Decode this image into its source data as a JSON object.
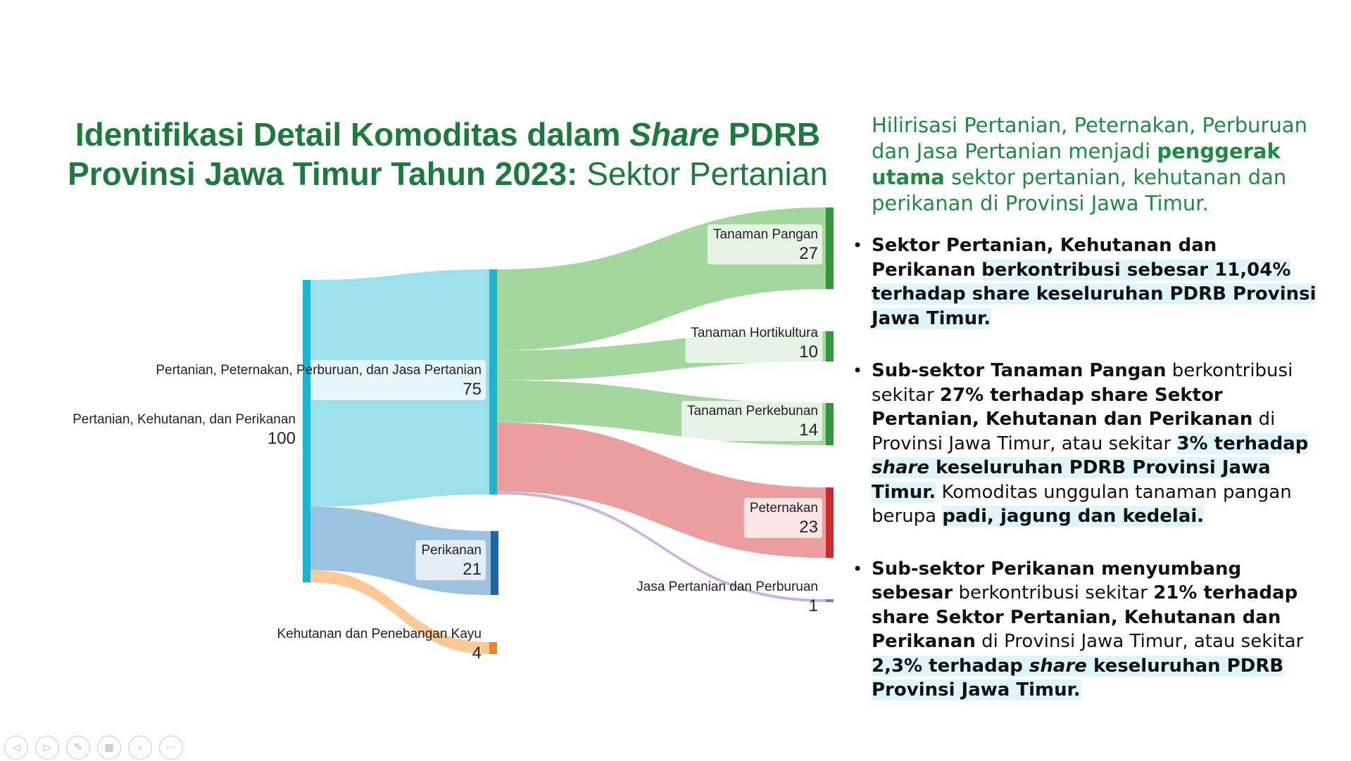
{
  "title": {
    "part1": "Identifikasi Detail Komoditas dalam ",
    "italic": "Share",
    "part2": " PDRB",
    "part3": "Provinsi Jawa Timur Tahun 2023:",
    "part4": " Sektor Pertanian"
  },
  "chart_data": {
    "type": "sankey",
    "nodes": [
      {
        "id": "root",
        "label": "Pertanian, Kehutanan, dan Perikanan",
        "value": "100",
        "color": "#1cb5d0"
      },
      {
        "id": "ppbj",
        "label": "Pertanian, Peternakan, Perburuan, dan Jasa Pertanian",
        "value": "75",
        "color": "#1cb5d0"
      },
      {
        "id": "perikanan",
        "label": "Perikanan",
        "value": "21",
        "color": "#1f66a8"
      },
      {
        "id": "kehutanan",
        "label": "Kehutanan dan Penebangan Kayu",
        "value": "4",
        "color": "#f58220"
      },
      {
        "id": "pangan",
        "label": "Tanaman Pangan",
        "value": "27",
        "color": "#2e9a37"
      },
      {
        "id": "horti",
        "label": "Tanaman Hortikultura",
        "value": "10",
        "color": "#2e9a37"
      },
      {
        "id": "kebun",
        "label": "Tanaman Perkebunan",
        "value": "14",
        "color": "#2e9a37"
      },
      {
        "id": "ternak",
        "label": "Peternakan",
        "value": "23",
        "color": "#d62728"
      },
      {
        "id": "jasa",
        "label": "Jasa Pertanian dan Perburuan",
        "value": "1",
        "color": "#9467bd"
      }
    ],
    "links": [
      {
        "source": "root",
        "target": "ppbj",
        "value": 75,
        "color": "#9adfe9"
      },
      {
        "source": "root",
        "target": "perikanan",
        "value": 21,
        "color": "#9bc2de"
      },
      {
        "source": "root",
        "target": "kehutanan",
        "value": 4,
        "color": "#fcc996"
      },
      {
        "source": "ppbj",
        "target": "pangan",
        "value": 27,
        "color": "#a3d79d"
      },
      {
        "source": "ppbj",
        "target": "horti",
        "value": 10,
        "color": "#a3d79d"
      },
      {
        "source": "ppbj",
        "target": "kebun",
        "value": 14,
        "color": "#a3d79d"
      },
      {
        "source": "ppbj",
        "target": "ternak",
        "value": 23,
        "color": "#ec9d9d"
      },
      {
        "source": "ppbj",
        "target": "jasa",
        "value": 1,
        "color": "#c8b3e0"
      }
    ]
  },
  "panel": {
    "intro_1": "Hilirisasi Pertanian, Peternakan, Perburuan dan Jasa Pertanian menjadi ",
    "intro_bold": "penggerak utama",
    "intro_2": " sektor pertanian, kehutanan dan perikanan di Provinsi Jawa Timur.",
    "b1": {
      "bold": "Sektor Pertanian, Kehutanan dan Perikanan",
      "hl": "berkontribusi sebesar 11,04% terhadap share keseluruhan PDRB Provinsi Jawa Timur."
    },
    "b2": {
      "bold1": "Sub-sektor Tanaman Pangan",
      "t1": " berkontribusi  sekitar ",
      "bold2": "27% terhadap share Sektor Pertanian, Kehutanan dan Perikanan",
      "t2": " di Provinsi Jawa Timur, atau sekitar ",
      "hl1": "3% terhadap ",
      "hl_italic": "share",
      "hl2": " keseluruhan PDRB Provinsi Jawa Timur.",
      "t3": " Komoditas unggulan tanaman pangan berupa ",
      "hl3": "padi, jagung dan kedelai."
    },
    "b3": {
      "bold1": "Sub-sektor Perikanan menyumbang sebesar",
      "t1": " berkontribusi  sekitar ",
      "bold2": "21% terhadap share Sektor Pertanian, Kehutanan dan Perikanan",
      "t2": " di Provinsi Jawa Timur, atau sekitar ",
      "hl1": "2,3% terhadap ",
      "hl_italic": "share",
      "hl2": " keseluruhan PDRB Provinsi Jawa Timur."
    }
  },
  "nav": {
    "prev_icon": "◁",
    "next_icon": "▷",
    "pen_icon": "✎",
    "slides_icon": "▦",
    "zoom_icon": "⌕",
    "more_icon": "⋯"
  }
}
